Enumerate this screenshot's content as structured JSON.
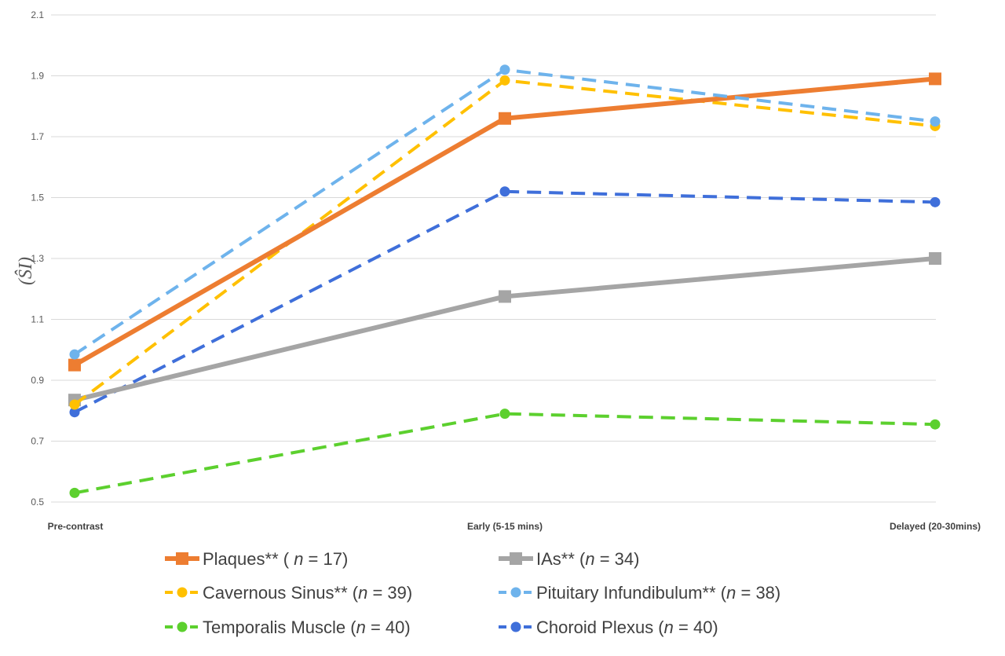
{
  "chart_data": {
    "type": "line",
    "ylabel": "(ŜI)",
    "ylim": [
      0.5,
      2.1
    ],
    "yticks": [
      "0.5",
      "0.7",
      "0.9",
      "1.1",
      "1.3",
      "1.5",
      "1.7",
      "1.9",
      "2.1"
    ],
    "categories": [
      "Pre-contrast",
      "Early (5-15 mins)",
      "Delayed (20-30mins)"
    ],
    "grid": true,
    "legend_position": "bottom",
    "series": [
      {
        "key": "plaques",
        "legend_parts": [
          "Plaques** ( ",
          "n",
          " = 17)"
        ],
        "values": [
          0.95,
          1.76,
          1.89
        ],
        "color": "#ED7D31",
        "dashed": false,
        "marker": "square",
        "width": 6
      },
      {
        "key": "ias",
        "legend_parts": [
          "IAs** (",
          "n",
          " = 34)"
        ],
        "values": [
          0.835,
          1.175,
          1.3
        ],
        "color": "#A5A5A5",
        "dashed": false,
        "marker": "square",
        "width": 6
      },
      {
        "key": "cavernous-sinus",
        "legend_parts": [
          "Cavernous Sinus** (",
          "n",
          " = 39)"
        ],
        "values": [
          0.82,
          1.885,
          1.735
        ],
        "color": "#FFC000",
        "dashed": true,
        "marker": "circle",
        "width": 4
      },
      {
        "key": "pituitary-infundibulum",
        "legend_parts": [
          "Pituitary Infundibulum** (",
          "n",
          " = 38)"
        ],
        "values": [
          0.985,
          1.92,
          1.75
        ],
        "color": "#5B9BD5",
        "dashed": true,
        "marker": "circle",
        "width": 4,
        "display_color": "#6EB3EC"
      },
      {
        "key": "temporalis-muscle",
        "legend_parts": [
          "Temporalis Muscle (",
          "n",
          " = 40)"
        ],
        "values": [
          0.53,
          0.79,
          0.755
        ],
        "color": "#5CD02E",
        "dashed": true,
        "marker": "circle",
        "width": 4
      },
      {
        "key": "choroid-plexus",
        "legend_parts": [
          "Choroid Plexus (",
          "n",
          " = 40)"
        ],
        "values": [
          0.795,
          1.52,
          1.485
        ],
        "color": "#3F6FDA",
        "dashed": true,
        "marker": "circle",
        "width": 4
      }
    ]
  }
}
